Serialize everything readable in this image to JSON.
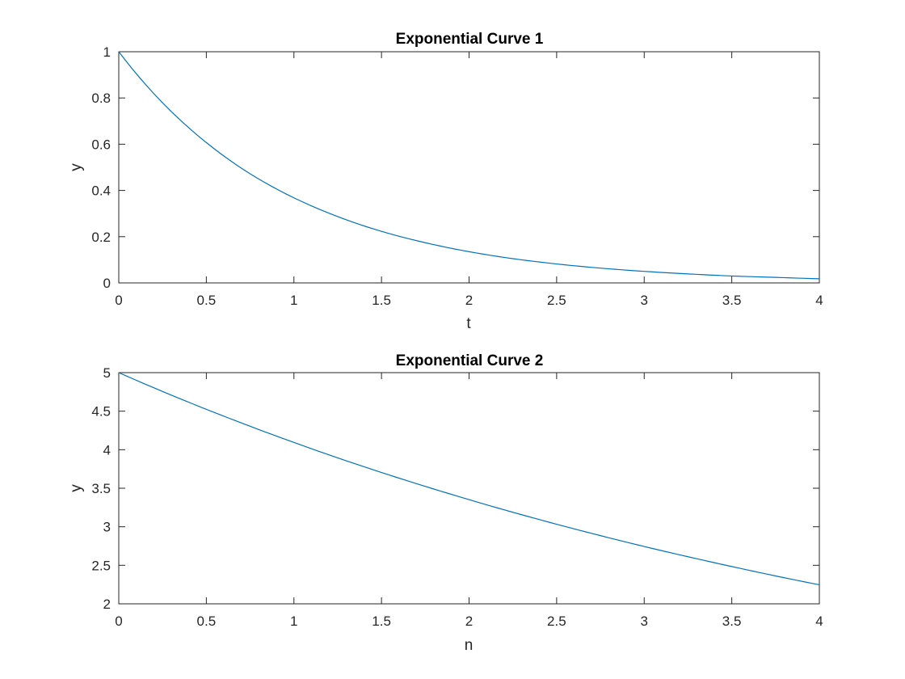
{
  "figure": {
    "background": "#ffffff"
  },
  "chart_data": [
    {
      "type": "line",
      "title": "Exponential Curve 1",
      "xlabel": "t",
      "ylabel": "y",
      "xlim": [
        0,
        4
      ],
      "ylim": [
        0,
        1
      ],
      "xticks": [
        0,
        0.5,
        1,
        1.5,
        2,
        2.5,
        3,
        3.5,
        4
      ],
      "yticks": [
        0,
        0.2,
        0.4,
        0.6,
        0.8,
        1
      ],
      "grid": false,
      "color": "#0072bd",
      "series": [
        {
          "x": [
            0,
            0.25,
            0.5,
            0.75,
            1,
            1.25,
            1.5,
            1.75,
            2,
            2.25,
            2.5,
            2.75,
            3,
            3.25,
            3.5,
            3.75,
            4
          ],
          "y": [
            1,
            0.779,
            0.607,
            0.472,
            0.368,
            0.287,
            0.223,
            0.174,
            0.135,
            0.105,
            0.082,
            0.064,
            0.05,
            0.039,
            0.03,
            0.024,
            0.018
          ]
        }
      ]
    },
    {
      "type": "line",
      "title": "Exponential Curve 2",
      "xlabel": "n",
      "ylabel": "y",
      "xlim": [
        0,
        4
      ],
      "ylim": [
        2,
        5
      ],
      "xticks": [
        0,
        0.5,
        1,
        1.5,
        2,
        2.5,
        3,
        3.5,
        4
      ],
      "yticks": [
        2,
        2.5,
        3,
        3.5,
        4,
        4.5,
        5
      ],
      "grid": false,
      "color": "#0072bd",
      "series": [
        {
          "x": [
            0,
            0.25,
            0.5,
            0.75,
            1,
            1.25,
            1.5,
            1.75,
            2,
            2.25,
            2.5,
            2.75,
            3,
            3.25,
            3.5,
            3.75,
            4
          ],
          "y": [
            5,
            4.756,
            4.524,
            4.304,
            4.094,
            3.894,
            3.704,
            3.524,
            3.352,
            3.188,
            3.033,
            2.885,
            2.744,
            2.611,
            2.484,
            2.362,
            2.247
          ]
        }
      ]
    }
  ]
}
